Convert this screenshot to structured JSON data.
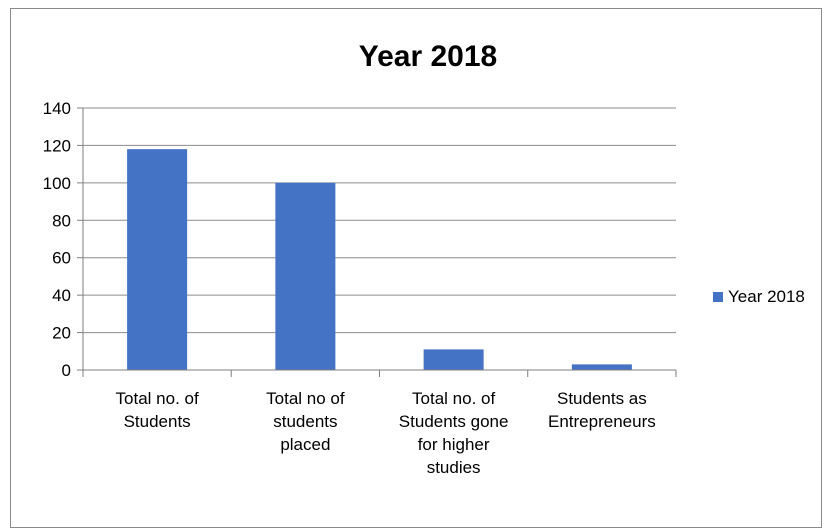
{
  "chart_data": {
    "type": "bar",
    "title": "Year 2018",
    "categories": [
      [
        "Total no. of",
        "Students"
      ],
      [
        "Total no of",
        "students",
        "placed"
      ],
      [
        "Total no. of",
        "Students gone",
        "for higher",
        "studies"
      ],
      [
        "Students as",
        "Entrepreneurs"
      ]
    ],
    "series": [
      {
        "name": "Year 2018",
        "values": [
          118,
          100,
          11,
          3
        ],
        "color": "#4472c4"
      }
    ],
    "ylim": [
      0,
      140
    ],
    "yticks": [
      0,
      20,
      40,
      60,
      80,
      100,
      120,
      140
    ],
    "grid": true,
    "legend": "right"
  }
}
